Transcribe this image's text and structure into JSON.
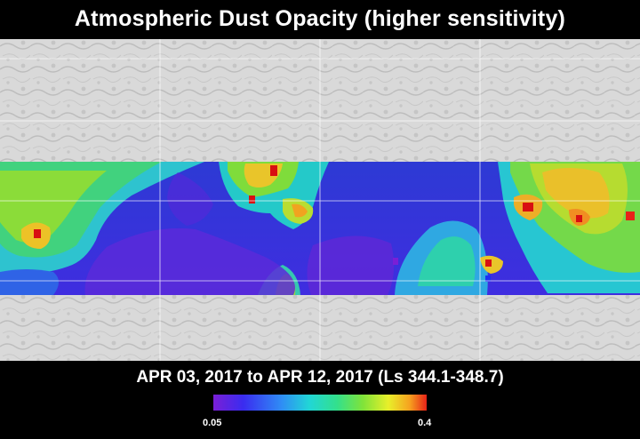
{
  "header": {
    "title": "Atmospheric Dust Opacity (higher sensitivity)"
  },
  "footer": {
    "date_range": "APR 03, 2017 to APR 12, 2017 (Ls 344.1-348.7)"
  },
  "legend": {
    "min_label": "0.05",
    "max_label": "0.4",
    "colors": [
      "#7a1fd6",
      "#3a2cf0",
      "#2f8df5",
      "#21d6d6",
      "#33e08c",
      "#7fe33a",
      "#e8ef2a",
      "#f6a21f",
      "#e82318"
    ]
  },
  "map": {
    "basemap_color": "#d7d7d7",
    "grid_color": "#ffffff",
    "hot_spot_color": "#d80f12"
  }
}
